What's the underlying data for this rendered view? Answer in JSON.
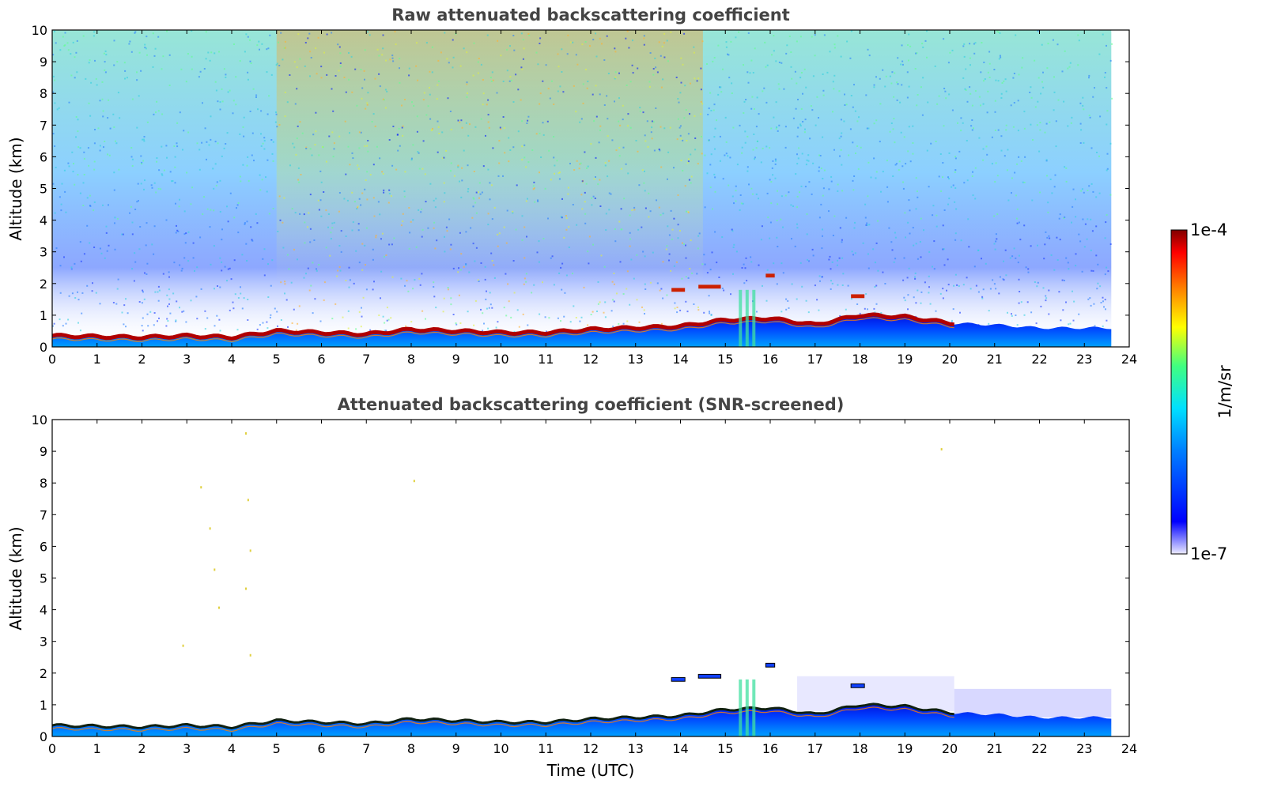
{
  "chart_data": [
    {
      "type": "heatmap",
      "title": "Raw attenuated backscattering coefficient",
      "xlabel": "",
      "ylabel": "Altitude (km)",
      "xlim": [
        0,
        24
      ],
      "ylim": [
        0,
        10
      ],
      "xticks": [
        "0",
        "1",
        "2",
        "3",
        "4",
        "5",
        "6",
        "7",
        "8",
        "9",
        "10",
        "11",
        "12",
        "13",
        "14",
        "15",
        "16",
        "17",
        "18",
        "19",
        "20",
        "21",
        "22",
        "23",
        "24"
      ],
      "yticks": [
        "0",
        "1",
        "2",
        "3",
        "4",
        "5",
        "6",
        "7",
        "8",
        "9",
        "10"
      ],
      "data_end_time": 23.6,
      "boundary_layer_top_km": [
        [
          0,
          0.35
        ],
        [
          2,
          0.3
        ],
        [
          3,
          0.35
        ],
        [
          4,
          0.3
        ],
        [
          5,
          0.5
        ],
        [
          6,
          0.45
        ],
        [
          7,
          0.4
        ],
        [
          8,
          0.55
        ],
        [
          9,
          0.5
        ],
        [
          10,
          0.45
        ],
        [
          11,
          0.45
        ],
        [
          12,
          0.55
        ],
        [
          13,
          0.6
        ],
        [
          14,
          0.65
        ],
        [
          15,
          0.85
        ],
        [
          16,
          0.9
        ],
        [
          17,
          0.7
        ],
        [
          18,
          1.0
        ],
        [
          19,
          0.95
        ],
        [
          20,
          0.75
        ],
        [
          21,
          0.7
        ],
        [
          22,
          0.6
        ],
        [
          23,
          0.6
        ],
        [
          23.6,
          0.6
        ]
      ],
      "elevated_layers": [
        {
          "t0": 13.8,
          "t1": 14.1,
          "alt": 1.8
        },
        {
          "t0": 14.4,
          "t1": 14.9,
          "alt": 1.9
        },
        {
          "t0": 15.9,
          "t1": 16.1,
          "alt": 2.25
        },
        {
          "t0": 17.8,
          "t1": 18.1,
          "alt": 1.6
        }
      ],
      "grid": false
    },
    {
      "type": "heatmap",
      "title": "Attenuated backscattering coefficient (SNR-screened)",
      "xlabel": "Time (UTC)",
      "ylabel": "Altitude (km)",
      "xlim": [
        0,
        24
      ],
      "ylim": [
        0,
        10
      ],
      "xticks": [
        "0",
        "1",
        "2",
        "3",
        "4",
        "5",
        "6",
        "7",
        "8",
        "9",
        "10",
        "11",
        "12",
        "13",
        "14",
        "15",
        "16",
        "17",
        "18",
        "19",
        "20",
        "21",
        "22",
        "23",
        "24"
      ],
      "yticks": [
        "0",
        "1",
        "2",
        "3",
        "4",
        "5",
        "6",
        "7",
        "8",
        "9",
        "10"
      ],
      "data_end_time": 23.6,
      "grid": false
    }
  ],
  "colorbar": {
    "max_label": "1e-4",
    "min_label": "1e-7",
    "unit_label": "1/m/sr",
    "colormap": "jet"
  }
}
